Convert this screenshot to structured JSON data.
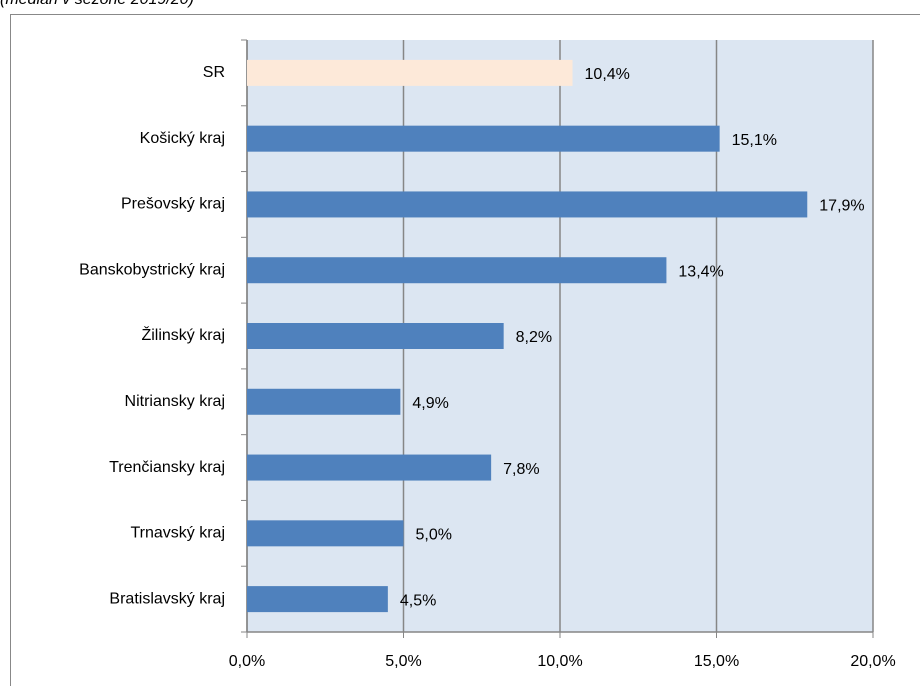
{
  "chart_data": {
    "type": "bar",
    "orientation": "horizontal",
    "subtitle": "(medián v sezóne 2019/20)",
    "categories": [
      "SR",
      "Košický kraj",
      "Prešovský kraj",
      "Banskobystrický kraj",
      "Žilinský kraj",
      "Nitriansky kraj",
      "Trenčiansky kraj",
      "Trnavský kraj",
      "Bratislavský kraj"
    ],
    "values": [
      10.4,
      15.1,
      17.9,
      13.4,
      8.2,
      4.9,
      7.8,
      5.0,
      4.5
    ],
    "value_labels": [
      "10,4%",
      "15,1%",
      "17,9%",
      "13,4%",
      "8,2%",
      "4,9%",
      "7,8%",
      "5,0%",
      "4,5%"
    ],
    "colors": [
      "#fde9d9",
      "#4f81bd",
      "#4f81bd",
      "#4f81bd",
      "#4f81bd",
      "#4f81bd",
      "#4f81bd",
      "#4f81bd",
      "#4f81bd"
    ],
    "xlim": [
      0,
      20
    ],
    "xticks": [
      {
        "value": 0,
        "label": "0,0%"
      },
      {
        "value": 5,
        "label": "5,0%"
      },
      {
        "value": 10,
        "label": "10,0%"
      },
      {
        "value": 15,
        "label": "15,0%"
      },
      {
        "value": 20,
        "label": "20,0%"
      }
    ],
    "grid": true
  }
}
